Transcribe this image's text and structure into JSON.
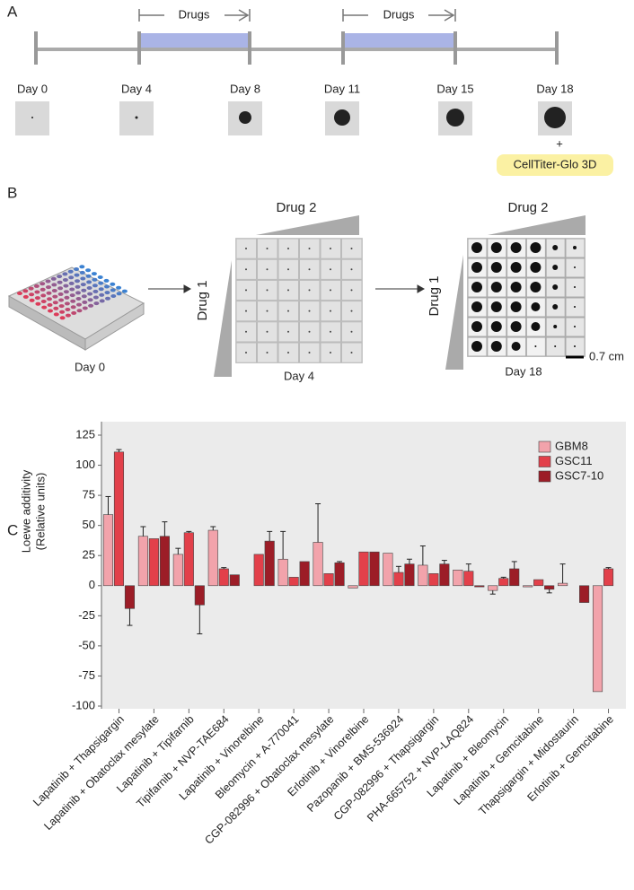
{
  "panel_a": {
    "label": "A",
    "drug_labels": [
      "Drugs",
      "Drugs"
    ],
    "days": [
      "Day 0",
      "Day 4",
      "Day 8",
      "Day 11",
      "Day 15",
      "Day 18"
    ],
    "plus": "+",
    "assay": "CellTiter-Glo 3D"
  },
  "panel_b": {
    "label": "B",
    "drug_2": [
      "Drug 2",
      "Drug 2"
    ],
    "drug_1": [
      "Drug 1",
      "Drug 1"
    ],
    "days": [
      "Day 0",
      "Day 4",
      "Day 18"
    ],
    "scale_bar": "0.7 cm"
  },
  "chart_data": {
    "panel_label": "C",
    "type": "bar",
    "y_label": [
      "Loewe additivity",
      "(Relative units)"
    ],
    "categories": [
      "Lapatinib + Thapsigargin",
      "Lapatinib + Obatoclax mesylate",
      "Lapatinib + Tipifarnib",
      "Tipifarnib + NVP-TAE684",
      "Lapatinib + Vinorelbine",
      "Bleomycin + A-770041",
      "CGP-082996 + Obatoclax mesylate",
      "Erlotinib + Vinorelbine",
      "Pazopanib + BMS-536924",
      "CGP-082996 + Thapsigargin",
      "PHA-665752 + NVP-LAQ824",
      "Lapatinib + Bleomycin",
      "Lapatinib + Gemcitabine",
      "Thapsigargin + Midostaurin",
      "Erlotinib + Gemcitabine"
    ],
    "series": [
      {
        "name": "GBM8",
        "color": "#f2a3ab",
        "values": [
          59,
          41,
          26,
          46,
          0,
          22,
          36,
          -2,
          27,
          17,
          13,
          -4,
          -1,
          2,
          -88
        ],
        "errors": [
          15,
          8,
          5,
          3,
          0,
          23,
          32,
          0,
          0,
          16,
          0,
          3,
          0,
          16,
          0
        ]
      },
      {
        "name": "GSC11",
        "color": "#e2404a",
        "values": [
          111,
          39,
          44,
          14,
          26,
          7,
          10,
          28,
          11,
          10,
          12,
          6,
          5,
          0,
          14
        ],
        "errors": [
          2,
          0,
          1,
          1,
          0,
          0,
          0,
          0,
          5,
          0,
          6,
          1,
          0,
          0,
          1
        ]
      },
      {
        "name": "GSC7-10",
        "color": "#9c1d27",
        "values": [
          -19,
          41,
          -16,
          9,
          37,
          20,
          19,
          28,
          18,
          18,
          -1,
          14,
          -3,
          -14,
          0
        ],
        "errors": [
          14,
          12,
          24,
          0,
          8,
          0,
          1,
          0,
          4,
          3,
          0,
          6,
          3,
          0,
          0
        ]
      }
    ],
    "ylim": [
      -100,
      125
    ],
    "yticks": [
      -100,
      -75,
      -50,
      -25,
      0,
      25,
      50,
      75,
      100,
      125
    ],
    "legend": "upper right"
  }
}
